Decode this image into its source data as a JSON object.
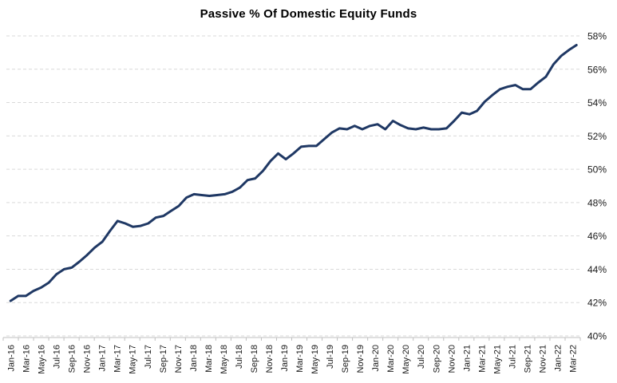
{
  "chart_data": {
    "type": "line",
    "title": "Passive % Of Domestic Equity Funds",
    "xlabel": "",
    "ylabel": "",
    "ylim": [
      40,
      58
    ],
    "ytick_step": 2,
    "ytick_labels": [
      "58%",
      "56%",
      "54%",
      "52%",
      "50%",
      "48%",
      "46%",
      "44%",
      "42%",
      "40%"
    ],
    "grid": "horizontal-dashed",
    "legend_position": "none",
    "y_axis_side": "right",
    "x_label_rotation_deg": 90,
    "x_frequency": "monthly",
    "x": [
      "Jan-16",
      "Feb-16",
      "Mar-16",
      "Apr-16",
      "May-16",
      "Jun-16",
      "Jul-16",
      "Aug-16",
      "Sep-16",
      "Oct-16",
      "Nov-16",
      "Dec-16",
      "Jan-17",
      "Feb-17",
      "Mar-17",
      "Apr-17",
      "May-17",
      "Jun-17",
      "Jul-17",
      "Aug-17",
      "Sep-17",
      "Oct-17",
      "Nov-17",
      "Dec-17",
      "Jan-18",
      "Feb-18",
      "Mar-18",
      "Apr-18",
      "May-18",
      "Jun-18",
      "Jul-18",
      "Aug-18",
      "Sep-18",
      "Oct-18",
      "Nov-18",
      "Dec-18",
      "Jan-19",
      "Feb-19",
      "Mar-19",
      "Apr-19",
      "May-19",
      "Jun-19",
      "Jul-19",
      "Aug-19",
      "Sep-19",
      "Oct-19",
      "Nov-19",
      "Dec-19",
      "Jan-20",
      "Feb-20",
      "Mar-20",
      "Apr-20",
      "May-20",
      "Jun-20",
      "Jul-20",
      "Aug-20",
      "Sep-20",
      "Oct-20",
      "Nov-20",
      "Dec-20",
      "Jan-21",
      "Feb-21",
      "Mar-21",
      "Apr-21",
      "May-21",
      "Jun-21",
      "Jul-21",
      "Aug-21",
      "Sep-21",
      "Oct-21",
      "Nov-21",
      "Dec-21",
      "Jan-22",
      "Feb-22",
      "Mar-22"
    ],
    "x_tick_labels": [
      "Jan-16",
      "Mar-16",
      "May-16",
      "Jul-16",
      "Sep-16",
      "Nov-16",
      "Jan-17",
      "Mar-17",
      "May-17",
      "Jul-17",
      "Sep-17",
      "Nov-17",
      "Jan-18",
      "Mar-18",
      "May-18",
      "Jul-18",
      "Sep-18",
      "Nov-18",
      "Jan-19",
      "Mar-19",
      "May-19",
      "Jul-19",
      "Sep-19",
      "Nov-19",
      "Jan-20",
      "Mar-20",
      "May-20",
      "Jul-20",
      "Sep-20",
      "Nov-20",
      "Jan-21",
      "Mar-21",
      "May-21",
      "Jul-21",
      "Sep-21",
      "Nov-21",
      "Jan-22",
      "Mar-22"
    ],
    "series": [
      {
        "name": "Passive % of domestic equity funds",
        "values": [
          42.1,
          42.4,
          42.4,
          42.7,
          42.9,
          43.2,
          43.7,
          44.0,
          44.1,
          44.45,
          44.85,
          45.3,
          45.65,
          46.3,
          46.9,
          46.75,
          46.55,
          46.6,
          46.75,
          47.1,
          47.2,
          47.5,
          47.8,
          48.3,
          48.5,
          48.45,
          48.4,
          48.45,
          48.5,
          48.65,
          48.9,
          49.35,
          49.45,
          49.9,
          50.5,
          50.95,
          50.6,
          50.95,
          51.35,
          51.4,
          51.4,
          51.8,
          52.2,
          52.45,
          52.4,
          52.6,
          52.4,
          52.6,
          52.7,
          52.4,
          52.9,
          52.65,
          52.45,
          52.4,
          52.5,
          52.4,
          52.4,
          52.45,
          52.9,
          53.4,
          53.3,
          53.5,
          54.05,
          54.45,
          54.8,
          54.95,
          55.05,
          54.8,
          54.8,
          55.2,
          55.55,
          56.3,
          56.8,
          57.15,
          57.45
        ]
      }
    ],
    "style": {
      "line_color": "#1f3864",
      "gridline_color": "#d9d9d9",
      "axis_color": "#bfbfbf",
      "label_color": "#1a1a1a",
      "title_color": "#000000",
      "background_color": "#ffffff"
    }
  }
}
